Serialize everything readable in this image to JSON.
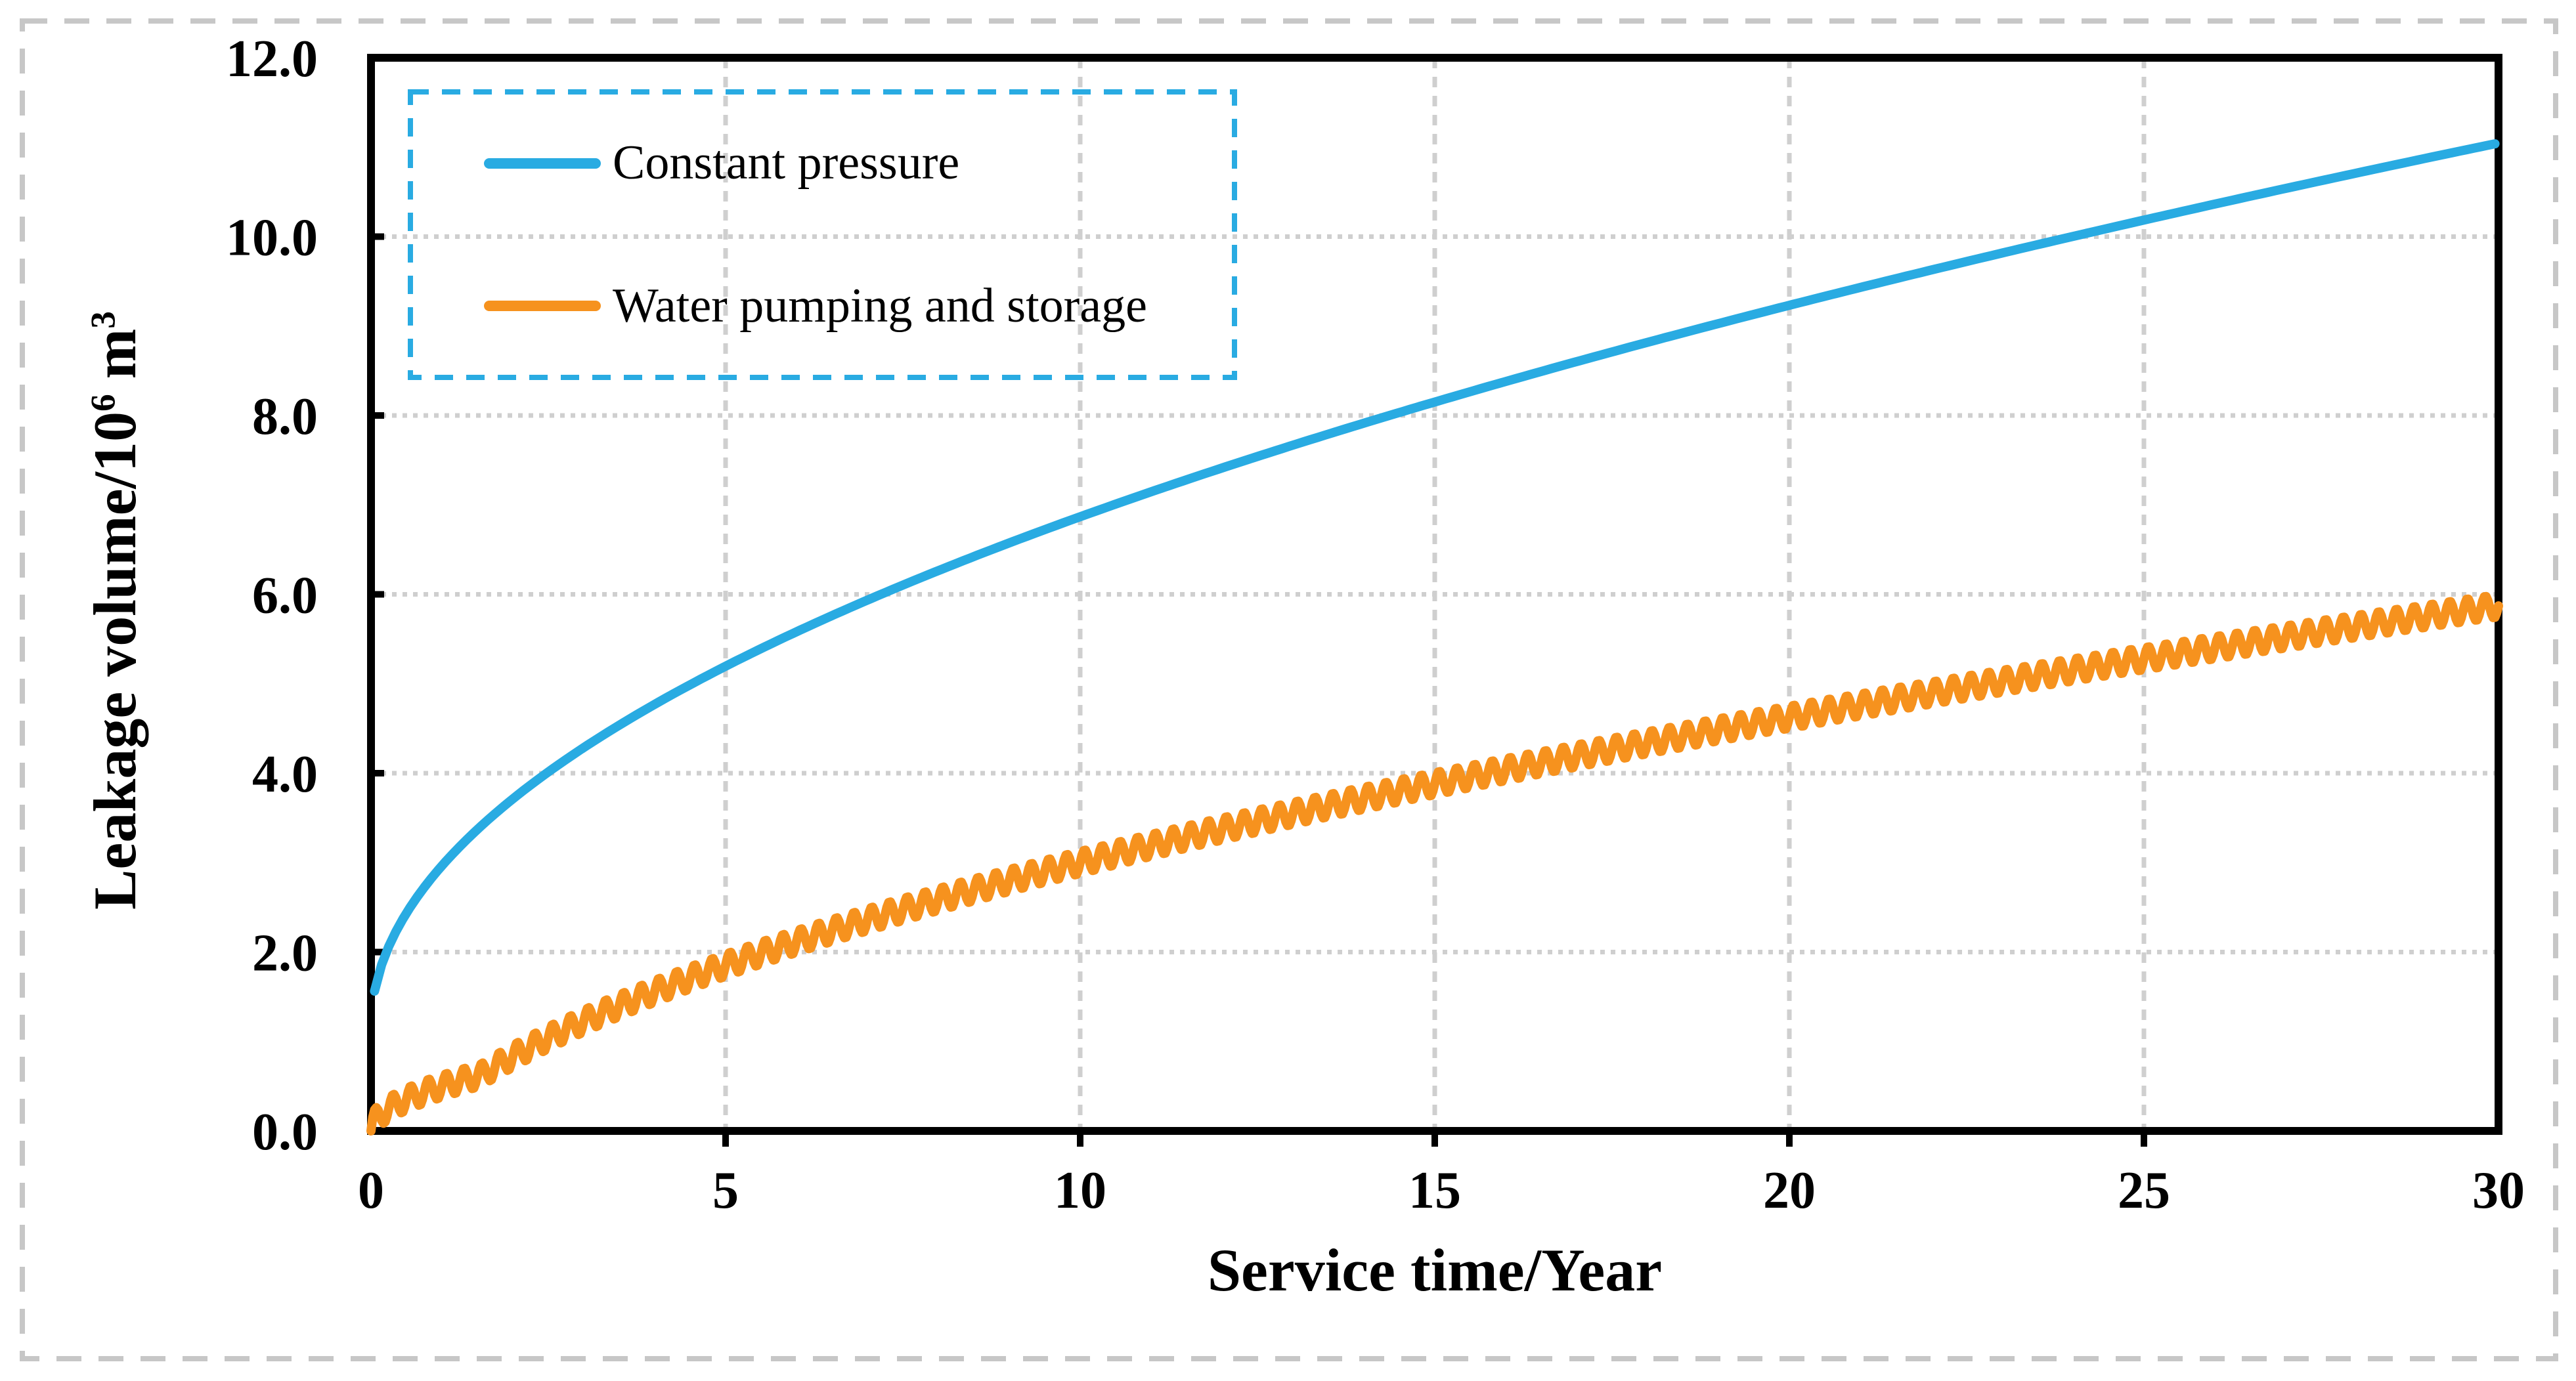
{
  "figure": {
    "background_color": "#ffffff",
    "outer_border": {
      "style": "dashed",
      "color": "#c7c7c7"
    }
  },
  "chart_data": {
    "type": "line",
    "title": "",
    "xlabel": "Service time/Year",
    "ylabel_text": "Leakage volume/10⁶ m³",
    "ylabel_parts": [
      {
        "text": "Leakage volume/10"
      },
      {
        "text": "6",
        "sup": true
      },
      {
        "text": " m"
      },
      {
        "text": "3",
        "sup": true
      }
    ],
    "xlim": [
      0,
      30
    ],
    "ylim": [
      0,
      12
    ],
    "xticks": [
      {
        "v": 0,
        "label": "0"
      },
      {
        "v": 5,
        "label": "5"
      },
      {
        "v": 10,
        "label": "10"
      },
      {
        "v": 15,
        "label": "15"
      },
      {
        "v": 20,
        "label": "20"
      },
      {
        "v": 25,
        "label": "25"
      },
      {
        "v": 30,
        "label": "30"
      }
    ],
    "yticks": [
      {
        "v": 0,
        "label": "0.0"
      },
      {
        "v": 2,
        "label": "2.0"
      },
      {
        "v": 4,
        "label": "4.0"
      },
      {
        "v": 6,
        "label": "6.0"
      },
      {
        "v": 8,
        "label": "8.0"
      },
      {
        "v": 10,
        "label": "10.0"
      },
      {
        "v": 12,
        "label": "12.0"
      }
    ],
    "grid": {
      "horizontal_style": "dotted",
      "vertical_style": "dashed",
      "color": "#cfcfcf"
    },
    "legend": {
      "position": "inside-top-left",
      "border_style": "dashed",
      "border_color": "#29abe2",
      "background": "transparent"
    },
    "series": [
      {
        "name": "Constant pressure",
        "color": "#29abe2",
        "line_style": "solid",
        "model": {
          "type": "a_plus_b_sqrt_t",
          "a": 1.16,
          "b": 1.805,
          "t_start": 0.05,
          "t_end": 30,
          "dt": 0.1
        },
        "x_years": [
          0,
          1,
          2,
          3,
          4,
          5,
          6,
          7,
          8,
          9,
          10,
          11,
          12,
          13,
          14,
          15,
          16,
          17,
          18,
          19,
          20,
          21,
          22,
          23,
          24,
          25,
          26,
          27,
          28,
          29,
          30
        ],
        "values_by_year": [
          1.16,
          2.97,
          3.71,
          4.29,
          4.77,
          5.2,
          5.58,
          5.94,
          6.27,
          6.58,
          6.87,
          7.15,
          7.41,
          7.67,
          7.91,
          8.15,
          8.38,
          8.6,
          8.82,
          9.03,
          9.23,
          9.43,
          9.63,
          9.82,
          10.0,
          10.19,
          10.36,
          10.54,
          10.71,
          10.88,
          11.05
        ]
      },
      {
        "name": "Water pumping and storage",
        "color": "#f6921e",
        "line_style": "solid-oscillating",
        "model": {
          "type": "piecewise_sqrt_trend_plus_sine",
          "inner_coef": 0.5,
          "a": -0.92,
          "b": 1.24,
          "t_join": 1.545,
          "osc_amplitude": 0.13,
          "osc_period": 0.25,
          "t_start": 0,
          "t_end": 30,
          "dt": 0.025
        },
        "x_years": [
          0,
          1,
          2,
          3,
          4,
          5,
          6,
          7,
          8,
          9,
          10,
          11,
          12,
          13,
          14,
          15,
          16,
          17,
          18,
          19,
          20,
          21,
          22,
          23,
          24,
          25,
          26,
          27,
          28,
          29,
          30
        ],
        "trend_values_by_year": [
          0,
          0.5,
          0.83,
          1.23,
          1.56,
          1.85,
          2.12,
          2.36,
          2.59,
          2.8,
          3.0,
          3.19,
          3.38,
          3.55,
          3.72,
          3.88,
          4.04,
          4.19,
          4.34,
          4.49,
          4.63,
          4.76,
          4.9,
          5.03,
          5.15,
          5.28,
          5.4,
          5.52,
          5.64,
          5.76,
          5.87
        ]
      }
    ]
  }
}
